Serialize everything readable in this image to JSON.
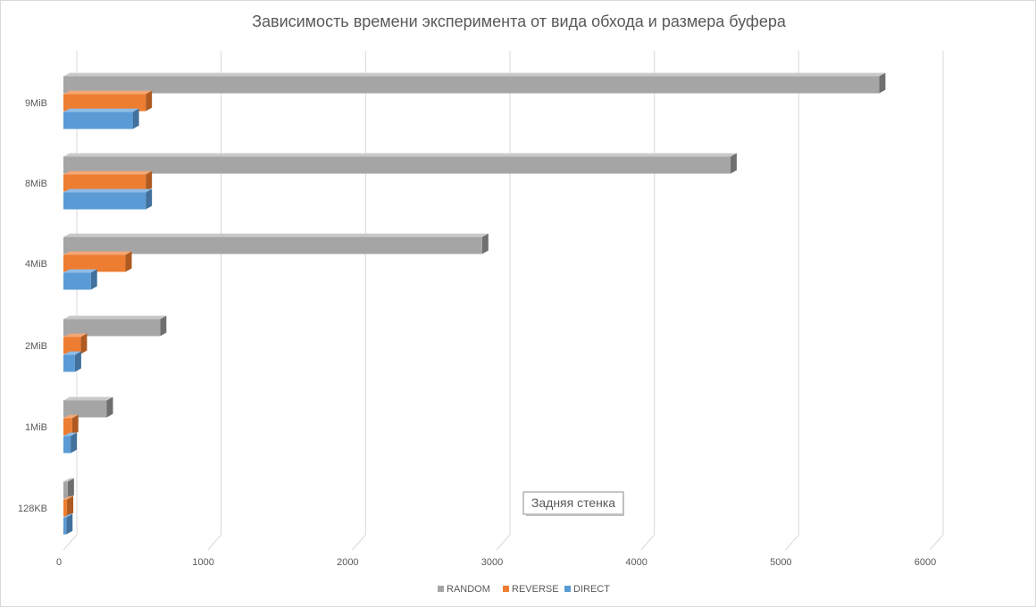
{
  "chart_data": {
    "type": "bar",
    "orientation": "horizontal",
    "three_d": true,
    "title": "Зависимость времени эксперимента от вида обхода и размера буфера",
    "xlabel": "",
    "ylabel": "",
    "categories": [
      "128KB",
      "1MiB",
      "2MiB",
      "4MiB",
      "8MiB",
      "9MiB"
    ],
    "series": [
      {
        "name": "DIRECT",
        "color": "#5b9bd5",
        "side": "#41719c",
        "top": "#8fbce6",
        "values": [
          20,
          50,
          80,
          190,
          570,
          480
        ]
      },
      {
        "name": "REVERSE",
        "color": "#ed7d31",
        "side": "#ae5a21",
        "top": "#f4a774",
        "values": [
          25,
          60,
          120,
          430,
          570,
          570
        ]
      },
      {
        "name": "RANDOM",
        "color": "#a5a5a5",
        "side": "#6f6f6f",
        "top": "#c9c9c9",
        "values": [
          30,
          300,
          670,
          2900,
          4620,
          5650
        ]
      }
    ],
    "xlim": [
      0,
      6000
    ],
    "xticks": [
      0,
      1000,
      2000,
      3000,
      4000,
      5000,
      6000
    ],
    "grid": true,
    "legend": "bottom",
    "legend_order": [
      "RANDOM",
      "REVERSE",
      "DIRECT"
    ]
  },
  "tooltip": {
    "text": "Задняя стенка"
  }
}
